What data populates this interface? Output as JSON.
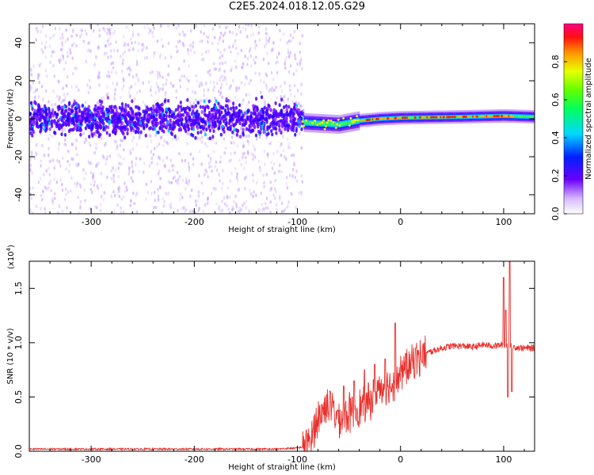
{
  "title": "C2E5.2024.018.12.05.G29",
  "colors": {
    "snr_line": "#e8302c",
    "colormap": [
      "#ffffff",
      "#e6d0ff",
      "#9b30ff",
      "#5a00ff",
      "#0030ff",
      "#00c8ff",
      "#00ff80",
      "#40ff00",
      "#c8ff00",
      "#ffb000",
      "#ff2000",
      "#ff0080"
    ]
  },
  "chart_data": [
    {
      "type": "heatmap",
      "xlabel": "Height of straight line (km)",
      "ylabel": "Frequency (Hz)",
      "xlim": [
        -360,
        130
      ],
      "ylim": [
        -50,
        50
      ],
      "x_ticks": [
        "-300",
        "-200",
        "-100",
        "0",
        "100"
      ],
      "x_tick_values": [
        -300,
        -200,
        -100,
        0,
        100
      ],
      "y_ticks": [
        "-40",
        "-20",
        "0",
        "20",
        "40"
      ],
      "y_tick_values": [
        -40,
        -20,
        0,
        20,
        40
      ],
      "colorbar": {
        "label": "Normalized spectral amplitude",
        "range": [
          0,
          1
        ],
        "ticks": [
          "0.0",
          "0.2",
          "0.4",
          "0.6",
          "0.8"
        ],
        "tick_values": [
          0.0,
          0.2,
          0.4,
          0.6,
          0.8
        ]
      },
      "features": {
        "noise_region_x": [
          -360,
          -95
        ],
        "noise_spread_hz": 50,
        "core_spread_hz": 10,
        "signal_start_x": -95,
        "signal_center_hz": [
          {
            "x": -95,
            "y": -2
          },
          {
            "x": -60,
            "y": -3
          },
          {
            "x": -40,
            "y": -1
          },
          {
            "x": -20,
            "y": 0
          },
          {
            "x": 0,
            "y": 0.5
          },
          {
            "x": 60,
            "y": 1
          },
          {
            "x": 100,
            "y": 1.5
          },
          {
            "x": 130,
            "y": 1
          }
        ],
        "peak_x_range": [
          -40,
          110
        ]
      }
    },
    {
      "type": "line",
      "xlabel": "Height of straight line (km)",
      "ylabel": "SNR (10 * v/v)",
      "y_multiplier": "(x10",
      "y_multiplier_exp": "4",
      "y_multiplier_close": ")",
      "xlim": [
        -360,
        130
      ],
      "ylim": [
        0,
        1.75
      ],
      "x_ticks": [
        "-300",
        "-200",
        "-100",
        "0",
        "100"
      ],
      "x_tick_values": [
        -300,
        -200,
        -100,
        0,
        100
      ],
      "y_ticks": [
        "0.0",
        "0.5",
        "1.0",
        "1.5"
      ],
      "y_tick_values": [
        0.0,
        0.5,
        1.0,
        1.5
      ],
      "series": [
        {
          "points": [
            [
              -360,
              0.02
            ],
            [
              -300,
              0.02
            ],
            [
              -200,
              0.02
            ],
            [
              -120,
              0.02
            ],
            [
              -100,
              0.03
            ],
            [
              -90,
              0.05
            ],
            [
              -80,
              0.3
            ],
            [
              -70,
              0.45
            ],
            [
              -60,
              0.3
            ],
            [
              -50,
              0.35
            ],
            [
              -40,
              0.4
            ],
            [
              -30,
              0.45
            ],
            [
              -20,
              0.6
            ],
            [
              -10,
              0.6
            ],
            [
              0,
              0.7
            ],
            [
              10,
              0.8
            ],
            [
              20,
              0.88
            ],
            [
              30,
              0.92
            ],
            [
              40,
              0.95
            ],
            [
              50,
              0.97
            ],
            [
              60,
              0.97
            ],
            [
              70,
              0.96
            ],
            [
              80,
              0.98
            ],
            [
              90,
              0.97
            ],
            [
              100,
              0.98
            ],
            [
              105,
              0.97
            ],
            [
              110,
              0.96
            ],
            [
              120,
              0.95
            ],
            [
              130,
              0.95
            ]
          ],
          "spikes": [
            [
              -68,
              0.55
            ],
            [
              -55,
              0.6
            ],
            [
              -45,
              0.65
            ],
            [
              -35,
              0.75
            ],
            [
              -25,
              0.8
            ],
            [
              -15,
              0.85
            ],
            [
              -5,
              1.18
            ],
            [
              5,
              0.9
            ],
            [
              15,
              0.95
            ],
            [
              100,
              1.6
            ],
            [
              102,
              1.3
            ],
            [
              104,
              0.5
            ],
            [
              106,
              1.75
            ],
            [
              108,
              0.55
            ]
          ]
        }
      ]
    }
  ]
}
